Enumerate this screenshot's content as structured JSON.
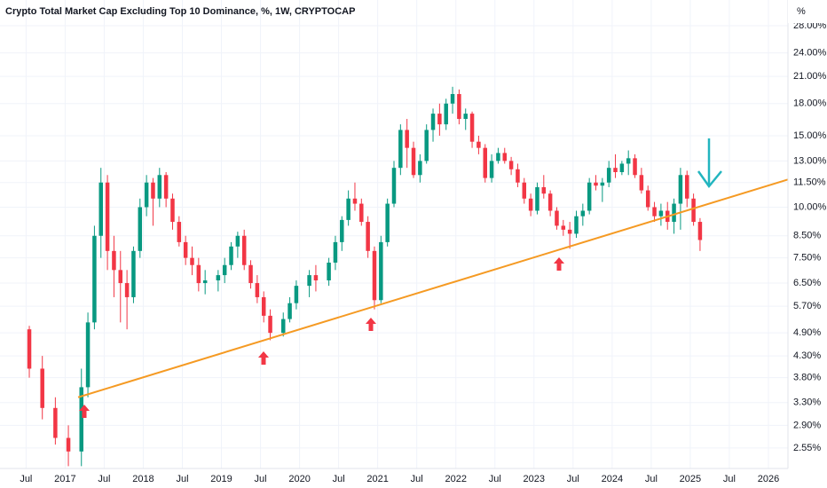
{
  "chart_data": {
    "type": "candlestick",
    "title": "Crypto Total Market Cap Excluding Top 10 Dominance, %, 1W, CRYPTOCAP",
    "unit_label": "%",
    "log_scale": true,
    "grid": true,
    "up_color": "#089981",
    "down_color": "#f23645",
    "xlim": [
      "2016-03",
      "2026-04"
    ],
    "ylim": [
      2.27,
      32.4
    ],
    "xticks": [
      {
        "value": "2016-07",
        "label": "Jul"
      },
      {
        "value": "2017-01",
        "label": "2017"
      },
      {
        "value": "2017-07",
        "label": "Jul"
      },
      {
        "value": "2018-01",
        "label": "2018"
      },
      {
        "value": "2018-07",
        "label": "Jul"
      },
      {
        "value": "2019-01",
        "label": "2019"
      },
      {
        "value": "2019-07",
        "label": "Jul"
      },
      {
        "value": "2020-01",
        "label": "2020"
      },
      {
        "value": "2020-07",
        "label": "Jul"
      },
      {
        "value": "2021-01",
        "label": "2021"
      },
      {
        "value": "2021-07",
        "label": "Jul"
      },
      {
        "value": "2022-01",
        "label": "2022"
      },
      {
        "value": "2022-07",
        "label": "Jul"
      },
      {
        "value": "2023-01",
        "label": "2023"
      },
      {
        "value": "2023-07",
        "label": "Jul"
      },
      {
        "value": "2024-01",
        "label": "2024"
      },
      {
        "value": "2024-07",
        "label": "Jul"
      },
      {
        "value": "2025-01",
        "label": "2025"
      },
      {
        "value": "2025-07",
        "label": "Jul"
      },
      {
        "value": "2026-01",
        "label": "2026"
      }
    ],
    "yticks": [
      {
        "value": 2.55,
        "label": "2.55%"
      },
      {
        "value": 2.9,
        "label": "2.90%"
      },
      {
        "value": 3.3,
        "label": "3.30%"
      },
      {
        "value": 3.8,
        "label": "3.80%"
      },
      {
        "value": 4.3,
        "label": "4.30%"
      },
      {
        "value": 4.9,
        "label": "4.90%"
      },
      {
        "value": 5.7,
        "label": "5.70%"
      },
      {
        "value": 6.5,
        "label": "6.50%"
      },
      {
        "value": 7.5,
        "label": "7.50%"
      },
      {
        "value": 8.5,
        "label": "8.50%"
      },
      {
        "value": 10,
        "label": "10.00%"
      },
      {
        "value": 11.5,
        "label": "11.50%"
      },
      {
        "value": 13,
        "label": "13.00%"
      },
      {
        "value": 15,
        "label": "15.00%"
      },
      {
        "value": 18,
        "label": "18.00%"
      },
      {
        "value": 21,
        "label": "21.00%"
      },
      {
        "value": 24,
        "label": "24.00%"
      },
      {
        "value": 28,
        "label": "28.00%"
      }
    ],
    "x": [
      "2016-07",
      "2016-09",
      "2016-11",
      "2017-01",
      "2017-03",
      "2017-04",
      "2017-05",
      "2017-06",
      "2017-07",
      "2017-08",
      "2017-09",
      "2017-10",
      "2017-11",
      "2017-12",
      "2018-01",
      "2018-02",
      "2018-03",
      "2018-04",
      "2018-05",
      "2018-06",
      "2018-07",
      "2018-08",
      "2018-09",
      "2018-10",
      "2018-12",
      "2019-01",
      "2019-02",
      "2019-03",
      "2019-04",
      "2019-05",
      "2019-06",
      "2019-07",
      "2019-08",
      "2019-10",
      "2019-11",
      "2019-12",
      "2020-02",
      "2020-03",
      "2020-05",
      "2020-06",
      "2020-07",
      "2020-08",
      "2020-09",
      "2020-10",
      "2020-11",
      "2020-12",
      "2021-01",
      "2021-02",
      "2021-03",
      "2021-04",
      "2021-05",
      "2021-06",
      "2021-07",
      "2021-08",
      "2021-09",
      "2021-10",
      "2021-11",
      "2021-12",
      "2022-01",
      "2022-02",
      "2022-03",
      "2022-04",
      "2022-05",
      "2022-06",
      "2022-07",
      "2022-08",
      "2022-09",
      "2022-10",
      "2022-11",
      "2022-12",
      "2023-01",
      "2023-02",
      "2023-03",
      "2023-04",
      "2023-05",
      "2023-06",
      "2023-07",
      "2023-08",
      "2023-09",
      "2023-10",
      "2023-11",
      "2023-12",
      "2024-01",
      "2024-02",
      "2024-03",
      "2024-04",
      "2024-05",
      "2024-06",
      "2024-07",
      "2024-08",
      "2024-09",
      "2024-10",
      "2024-11",
      "2024-12",
      "2025-01",
      "2025-02"
    ],
    "open": [
      5.0,
      4.0,
      3.2,
      2.7,
      2.5,
      3.6,
      5.2,
      8.5,
      11.5,
      7.8,
      7.0,
      6.5,
      6.0,
      7.8,
      10.0,
      11.5,
      10.5,
      12.0,
      10.5,
      9.2,
      8.2,
      7.5,
      7.2,
      6.5,
      6.6,
      6.8,
      7.2,
      8.0,
      8.5,
      7.2,
      6.5,
      6.0,
      5.4,
      4.9,
      5.3,
      5.8,
      6.4,
      6.8,
      6.6,
      7.3,
      8.2,
      9.3,
      10.5,
      10.2,
      9.2,
      7.8,
      5.9,
      8.2,
      10.2,
      12.5,
      15.5,
      14.0,
      12.0,
      13.0,
      15.5,
      17.0,
      16.0,
      18.0,
      19.0,
      16.5,
      17.0,
      14.5,
      14.0,
      11.8,
      13.0,
      13.6,
      13.0,
      12.4,
      11.5,
      10.5,
      9.8,
      11.2,
      10.8,
      9.8,
      9.0,
      8.8,
      8.6,
      9.5,
      9.8,
      11.5,
      11.3,
      11.5,
      12.5,
      12.2,
      12.8,
      13.2,
      12.0,
      11.0,
      10.0,
      9.5,
      9.8,
      9.2,
      10.2,
      12.0,
      10.5,
      9.2
    ],
    "high": [
      5.1,
      4.3,
      3.4,
      2.9,
      4.0,
      5.5,
      9.0,
      12.5,
      12.0,
      8.5,
      7.8,
      7.0,
      8.0,
      10.5,
      12.0,
      11.8,
      12.5,
      12.2,
      10.8,
      9.5,
      8.5,
      8.0,
      7.5,
      7.0,
      7.0,
      7.5,
      8.2,
      8.7,
      8.8,
      7.4,
      6.8,
      6.2,
      5.6,
      5.5,
      6.0,
      6.6,
      7.0,
      7.2,
      7.5,
      8.5,
      9.5,
      11.0,
      11.5,
      10.5,
      9.5,
      8.0,
      8.5,
      10.5,
      13.0,
      16.0,
      16.5,
      14.5,
      13.5,
      16.0,
      17.5,
      18.0,
      18.5,
      19.8,
      19.5,
      17.5,
      17.2,
      15.0,
      14.3,
      13.5,
      14.0,
      14.0,
      13.3,
      12.8,
      11.8,
      10.8,
      11.5,
      12.0,
      11.0,
      10.0,
      9.3,
      9.2,
      9.8,
      10.2,
      11.8,
      12.0,
      11.8,
      13.0,
      13.5,
      13.0,
      13.8,
      13.5,
      12.5,
      11.3,
      10.3,
      10.2,
      10.3,
      10.5,
      12.5,
      12.3,
      10.8,
      9.4
    ],
    "low": [
      3.8,
      3.0,
      2.6,
      2.3,
      2.3,
      3.4,
      5.0,
      7.5,
      7.0,
      6.0,
      5.2,
      5.0,
      5.8,
      7.5,
      9.5,
      9.0,
      10.0,
      10.0,
      8.8,
      8.0,
      7.2,
      6.8,
      6.2,
      6.1,
      6.2,
      6.5,
      7.0,
      7.5,
      7.0,
      6.3,
      5.8,
      5.2,
      4.7,
      4.8,
      5.2,
      5.6,
      6.0,
      6.2,
      6.4,
      7.0,
      7.8,
      9.0,
      9.8,
      9.0,
      7.5,
      5.6,
      5.8,
      8.0,
      10.0,
      12.0,
      12.5,
      11.8,
      11.5,
      12.8,
      14.5,
      15.0,
      15.5,
      17.0,
      16.0,
      15.5,
      14.0,
      13.5,
      11.5,
      11.5,
      12.8,
      12.8,
      12.0,
      11.2,
      10.2,
      9.5,
      9.6,
      10.5,
      9.5,
      8.8,
      8.5,
      7.9,
      8.4,
      9.0,
      9.6,
      11.0,
      10.3,
      11.2,
      11.8,
      12.0,
      12.0,
      11.8,
      10.8,
      9.8,
      9.2,
      9.0,
      8.8,
      8.6,
      8.8,
      10.0,
      9.0,
      7.8
    ],
    "close": [
      4.0,
      3.2,
      2.7,
      2.5,
      3.6,
      5.2,
      8.5,
      11.5,
      7.8,
      7.0,
      6.5,
      6.0,
      7.8,
      10.0,
      11.5,
      10.5,
      12.0,
      10.5,
      9.2,
      8.2,
      7.5,
      7.2,
      6.5,
      6.6,
      6.8,
      7.2,
      8.0,
      8.5,
      7.2,
      6.5,
      6.0,
      5.4,
      4.9,
      5.3,
      5.8,
      6.4,
      6.8,
      6.6,
      7.3,
      8.2,
      9.3,
      10.5,
      10.2,
      9.2,
      7.8,
      5.9,
      8.2,
      10.2,
      12.5,
      15.5,
      14.0,
      12.0,
      13.0,
      15.5,
      17.0,
      16.0,
      18.0,
      19.0,
      16.5,
      17.0,
      14.5,
      14.0,
      11.8,
      13.0,
      13.6,
      13.0,
      12.4,
      11.5,
      10.5,
      9.8,
      11.2,
      10.8,
      9.8,
      9.0,
      8.8,
      8.6,
      9.5,
      9.8,
      11.5,
      11.3,
      11.5,
      12.5,
      12.2,
      12.8,
      13.2,
      12.0,
      11.0,
      10.0,
      9.5,
      9.8,
      9.2,
      10.2,
      12.0,
      10.5,
      9.2,
      8.3
    ],
    "trendline": {
      "color": "#f59a23",
      "points": [
        {
          "x": "2017-03",
          "y": 3.4
        },
        {
          "x": "2026-04",
          "y": 11.7
        }
      ]
    }
  }
}
